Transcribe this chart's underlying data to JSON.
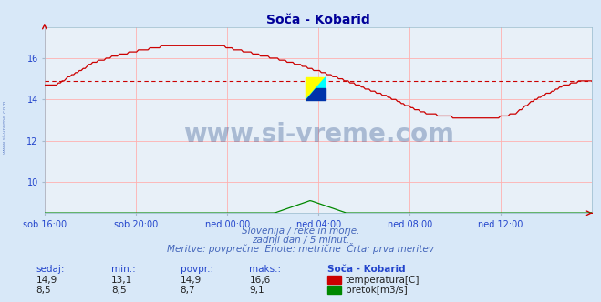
{
  "title": "Soča - Kobarid",
  "title_color": "#000099",
  "bg_color": "#d8e8f8",
  "plot_bg_color": "#e8f0f8",
  "grid_color": "#ffb0b0",
  "xlabel_ticks": [
    "sob 16:00",
    "sob 20:00",
    "ned 00:00",
    "ned 04:00",
    "ned 08:00",
    "ned 12:00"
  ],
  "yticks": [
    10,
    12,
    14,
    16
  ],
  "ylim": [
    8.5,
    17.5
  ],
  "avg_temp": 14.9,
  "temp_color": "#cc0000",
  "flow_color": "#008800",
  "avg_line_color": "#cc0000",
  "watermark_text": "www.si-vreme.com",
  "watermark_color": "#1a4080",
  "watermark_alpha": 0.3,
  "subtitle1": "Slovenija / reke in morje.",
  "subtitle2": "zadnji dan / 5 minut.",
  "subtitle3": "Meritve: povprečne  Enote: metrične  Črta: prva meritev",
  "subtitle_color": "#4466bb",
  "table_header": [
    "sedaj:",
    "min.:",
    "povpr.:",
    "maks.:",
    "Soča - Kobarid"
  ],
  "table_row1": [
    "14,9",
    "13,1",
    "14,9",
    "16,6",
    "temperatura[C]"
  ],
  "table_row2": [
    "8,5",
    "8,5",
    "8,7",
    "9,1",
    "pretok[m3/s]"
  ],
  "table_color_header": "#2244cc",
  "table_color_data": "#222222",
  "n_points": 288,
  "axis_arrow_color": "#cc0000",
  "left_label": "www.si-vreme.com",
  "left_label_color": "#4466bb"
}
